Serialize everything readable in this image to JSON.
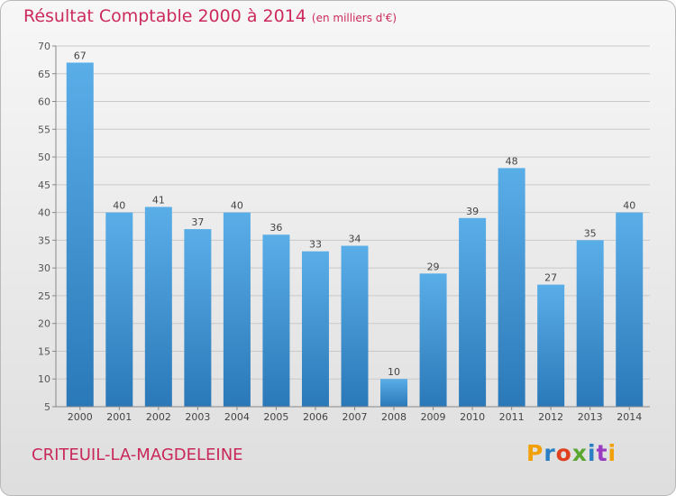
{
  "header": {
    "title": "Résultat Comptable 2000 à 2014",
    "subtitle": "(en milliers d'€)"
  },
  "footer": {
    "place_name": "CRITEUIL-LA-MAGDELEINE",
    "logo_text": "Proxiti"
  },
  "colors": {
    "bar_top": "#5aaee8",
    "bar_bottom": "#2a78b8",
    "title": "#cc2a5c"
  },
  "chart_data": {
    "type": "bar",
    "title": "Résultat Comptable 2000 à 2014",
    "subtitle": "(en milliers d'€)",
    "categories": [
      "2000",
      "2001",
      "2002",
      "2003",
      "2004",
      "2005",
      "2006",
      "2007",
      "2008",
      "2009",
      "2010",
      "2011",
      "2012",
      "2013",
      "2014"
    ],
    "values": [
      67,
      40,
      41,
      37,
      40,
      36,
      33,
      34,
      10,
      29,
      39,
      48,
      27,
      35,
      40
    ],
    "ylim": [
      5,
      70
    ],
    "yticks": [
      5,
      10,
      15,
      20,
      25,
      30,
      35,
      40,
      45,
      50,
      55,
      60,
      65,
      70
    ],
    "grid": true,
    "data_labels": true
  }
}
